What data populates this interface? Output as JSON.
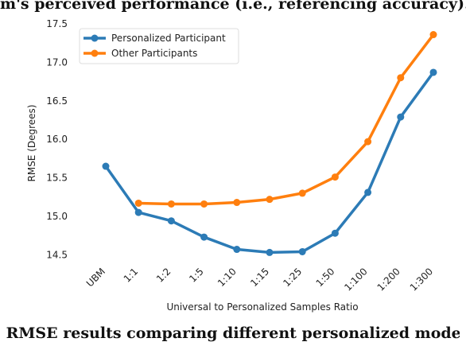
{
  "captions": {
    "top": "m's perceived performance (i.e., referencing accuracy).",
    "bottom": ") RMSE results comparing different personalized models a"
  },
  "chart_data": {
    "type": "line",
    "title": "",
    "xlabel": "Universal to Personalized Samples Ratio",
    "ylabel": "RMSE (Degrees)",
    "categories": [
      "UBM",
      "1:1",
      "1:2",
      "1:5",
      "1:10",
      "1:15",
      "1:25",
      "1:50",
      "1:100",
      "1:200",
      "1:300"
    ],
    "ylim": [
      14.4,
      17.5
    ],
    "yticks": [
      "14.5",
      "15.0",
      "15.5",
      "16.0",
      "16.5",
      "17.0",
      "17.5"
    ],
    "grid": false,
    "legend": "top-left",
    "series": [
      {
        "name": "Personalized Participant",
        "color": "#2c7bb6",
        "values": [
          15.65,
          15.05,
          14.94,
          14.73,
          14.57,
          14.53,
          14.54,
          14.78,
          15.31,
          16.29,
          16.87
        ]
      },
      {
        "name": "Other Participants",
        "color": "#ff7f0e",
        "values": [
          null,
          15.17,
          15.16,
          15.16,
          15.18,
          15.22,
          15.3,
          15.51,
          15.97,
          16.8,
          17.36
        ]
      }
    ]
  }
}
